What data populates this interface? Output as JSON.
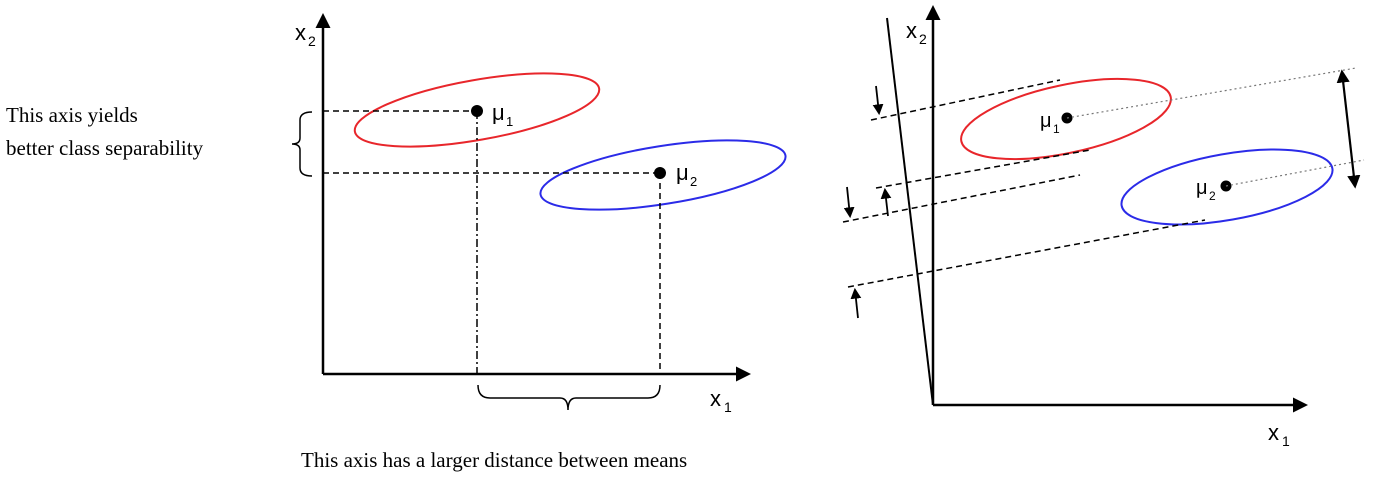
{
  "left_diagram": {
    "x_axis_label": "x",
    "x_axis_sub": "1",
    "y_axis_label": "x",
    "y_axis_sub": "2",
    "mean1_label": "μ",
    "mean1_sub": "1",
    "mean2_label": "μ",
    "mean2_sub": "2",
    "caption_left_line1": "This axis yields",
    "caption_left_line2": "better class separability",
    "caption_bottom": "This axis has a larger distance between means"
  },
  "right_diagram": {
    "x_axis_label": "x",
    "x_axis_sub": "1",
    "y_axis_label": "x",
    "y_axis_sub": "2",
    "mean1_label": "μ",
    "mean1_sub": "1",
    "mean2_label": "μ",
    "mean2_sub": "2"
  },
  "colors": {
    "class1": "#e8262b",
    "class2": "#2b2be8",
    "ink": "#000000",
    "background": "#ffffff"
  }
}
